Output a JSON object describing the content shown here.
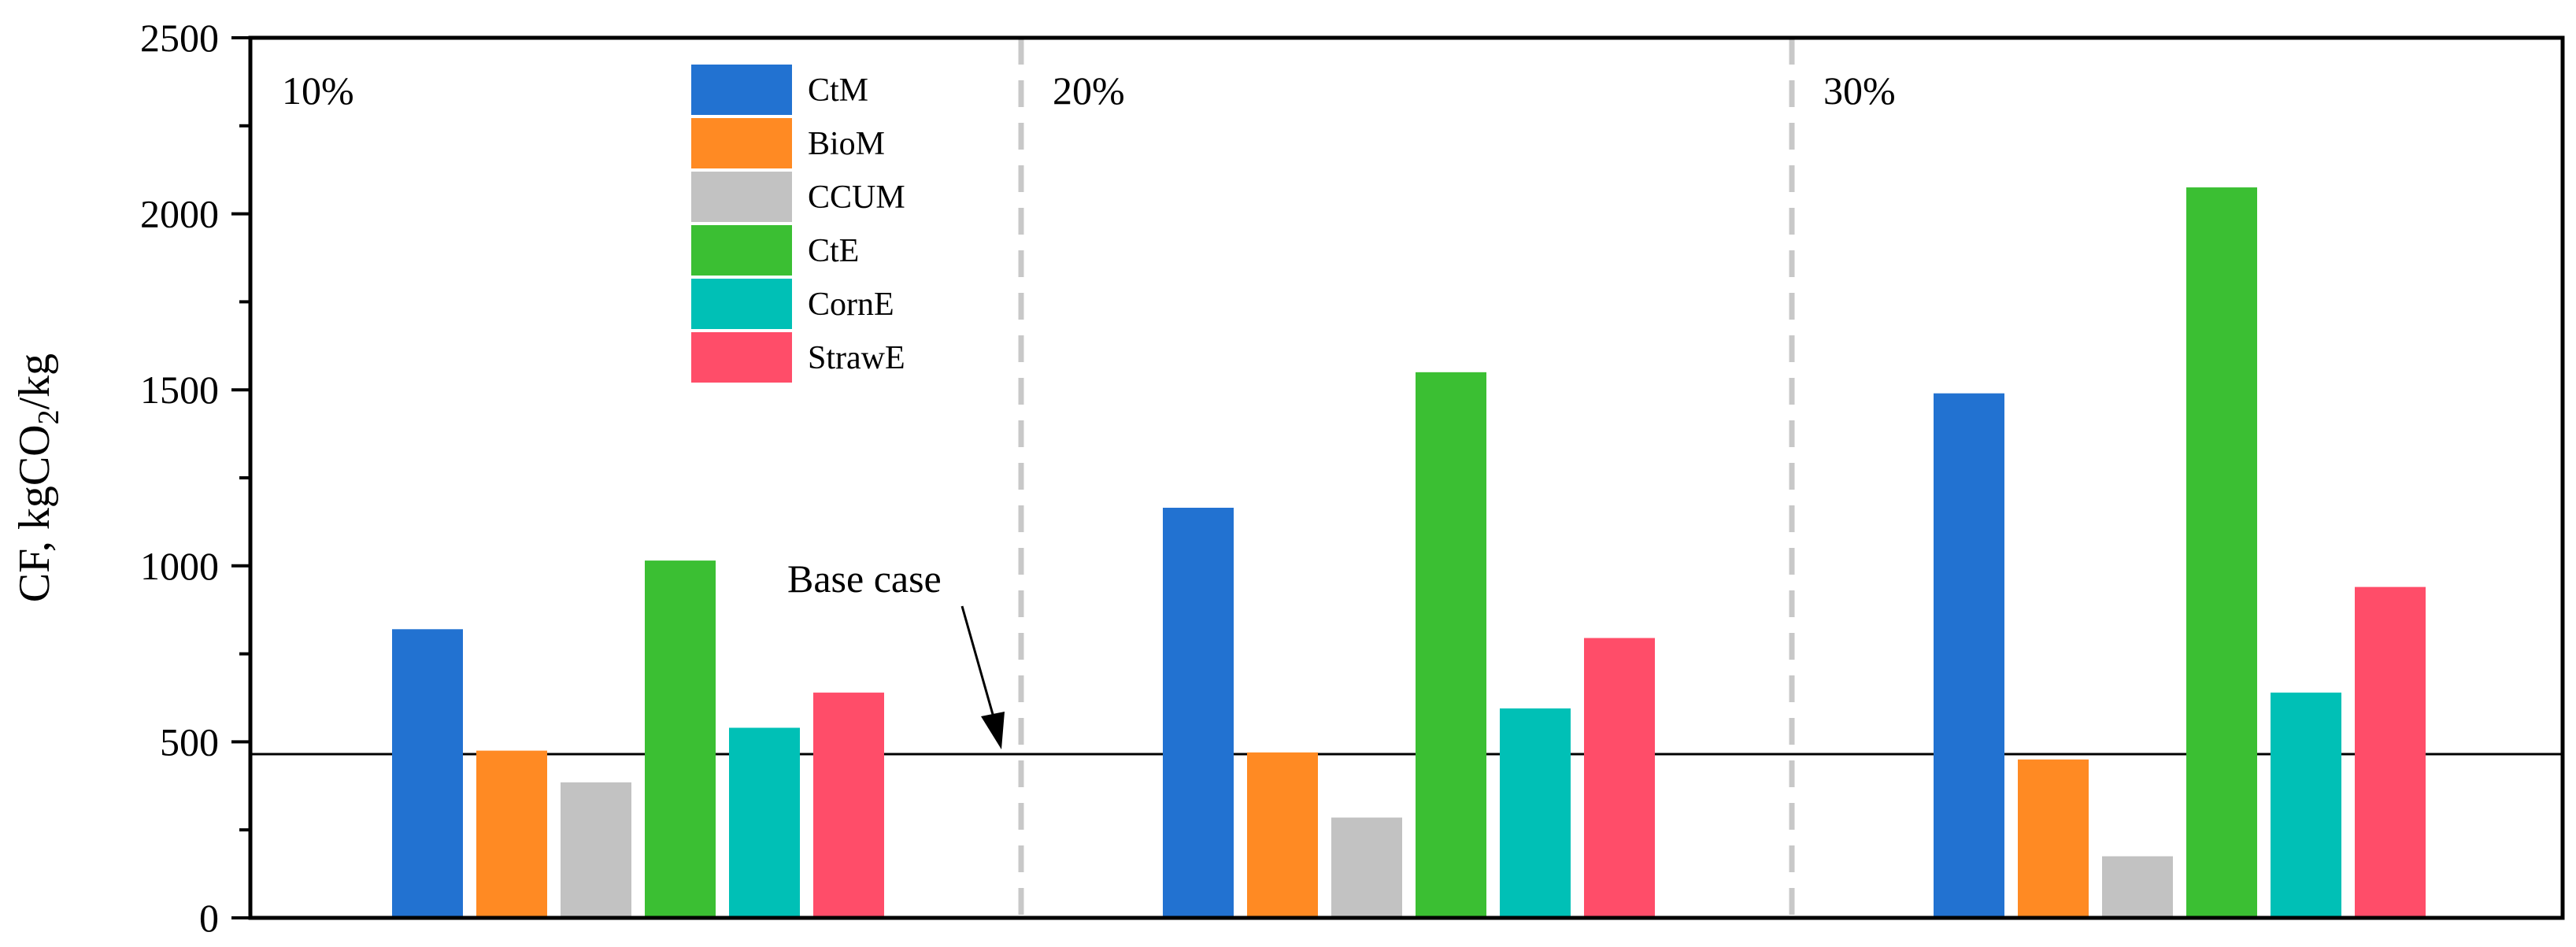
{
  "chart_data": {
    "type": "bar",
    "title": "",
    "xlabel": "",
    "ylabel": "CF, kgCO2/kg",
    "ylabel_parts": {
      "prefix": "CF, kgCO",
      "subscript": "2",
      "suffix": "/kg"
    },
    "ylim": [
      0,
      2500
    ],
    "yticks": [
      "0",
      "500",
      "1000",
      "1500",
      "2000",
      "2500"
    ],
    "grid": false,
    "legend_position": "top-left",
    "categories": [
      "10%",
      "20%",
      "30%"
    ],
    "series": [
      {
        "name": "CtM",
        "color": "#2272D1",
        "values": [
          820,
          1165,
          1490
        ]
      },
      {
        "name": "BioM",
        "color": "#FF8A23",
        "values": [
          475,
          470,
          450
        ]
      },
      {
        "name": "CCUM",
        "color": "#C2C2C2",
        "values": [
          385,
          285,
          175
        ]
      },
      {
        "name": "CtE",
        "color": "#3BBF33",
        "values": [
          1015,
          1550,
          2075
        ]
      },
      {
        "name": "CornE",
        "color": "#00C0B6",
        "values": [
          540,
          595,
          640
        ]
      },
      {
        "name": "StrawE",
        "color": "#FF4D69",
        "values": [
          640,
          795,
          940
        ]
      }
    ],
    "reference_line": {
      "label": "Base case",
      "value": 465
    }
  }
}
